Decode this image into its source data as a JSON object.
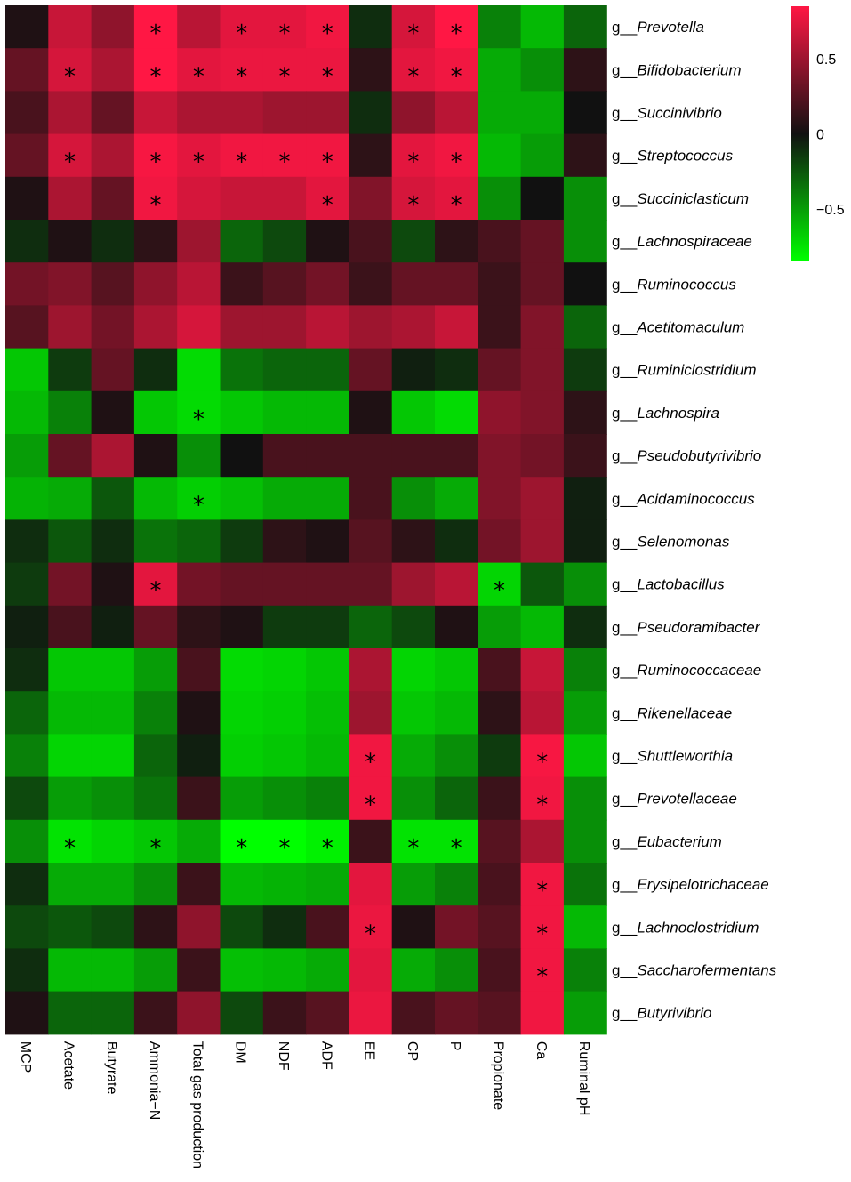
{
  "chart_data": {
    "type": "heatmap",
    "columns": [
      "MCP",
      "Acetate",
      "Butyrate",
      "Ammonia−N",
      "Total gas production",
      "DM",
      "NDF",
      "ADF",
      "EE",
      "CP",
      "P",
      "Propionate",
      "Ca",
      "Ruminal pH"
    ],
    "rows": [
      {
        "prefix": "g__",
        "name": "Prevotella"
      },
      {
        "prefix": "g__",
        "name": "Bifidobacterium"
      },
      {
        "prefix": "g__",
        "name": "Succinivibrio"
      },
      {
        "prefix": "g__",
        "name": "Streptococcus"
      },
      {
        "prefix": "g__",
        "name": "Succiniclasticum"
      },
      {
        "prefix": "g__",
        "name": "Lachnospiraceae"
      },
      {
        "prefix": "g__",
        "name": "Ruminococcus"
      },
      {
        "prefix": "g__",
        "name": "Acetitomaculum"
      },
      {
        "prefix": "g__",
        "name": "Ruminiclostridium"
      },
      {
        "prefix": "g__",
        "name": "Lachnospira"
      },
      {
        "prefix": "g__",
        "name": "Pseudobutyrivibrio"
      },
      {
        "prefix": "g__",
        "name": "Acidaminococcus"
      },
      {
        "prefix": "g__",
        "name": "Selenomonas"
      },
      {
        "prefix": "g__",
        "name": "Lactobacillus"
      },
      {
        "prefix": "g__",
        "name": "Pseudoramibacter"
      },
      {
        "prefix": "g__",
        "name": "Ruminococcaceae"
      },
      {
        "prefix": "g__",
        "name": "Rikenellaceae"
      },
      {
        "prefix": "g__",
        "name": "Shuttleworthia"
      },
      {
        "prefix": "g__",
        "name": "Prevotellaceae"
      },
      {
        "prefix": "g__",
        "name": "Eubacterium"
      },
      {
        "prefix": "g__",
        "name": "Erysipelotrichaceae"
      },
      {
        "prefix": "g__",
        "name": "Lachnoclostridium"
      },
      {
        "prefix": "g__",
        "name": "Saccharofermentans"
      },
      {
        "prefix": "g__",
        "name": "Butyrivibrio"
      }
    ],
    "values": [
      [
        0.05,
        0.65,
        0.45,
        0.85,
        0.6,
        0.75,
        0.75,
        0.8,
        -0.1,
        0.7,
        0.85,
        -0.4,
        -0.6,
        -0.3
      ],
      [
        0.3,
        0.7,
        0.55,
        0.85,
        0.75,
        0.78,
        0.78,
        0.78,
        0.1,
        0.75,
        0.8,
        -0.55,
        -0.45,
        0.1
      ],
      [
        0.2,
        0.55,
        0.3,
        0.65,
        0.55,
        0.55,
        0.5,
        0.5,
        -0.1,
        0.45,
        0.6,
        -0.55,
        -0.55,
        0.0
      ],
      [
        0.3,
        0.7,
        0.55,
        0.82,
        0.75,
        0.8,
        0.8,
        0.8,
        0.1,
        0.75,
        0.8,
        -0.6,
        -0.5,
        0.1
      ],
      [
        0.05,
        0.55,
        0.3,
        0.8,
        0.7,
        0.65,
        0.65,
        0.75,
        0.4,
        0.7,
        0.75,
        -0.45,
        0.0,
        -0.45
      ],
      [
        -0.1,
        0.05,
        -0.1,
        0.1,
        0.5,
        -0.3,
        -0.2,
        0.05,
        0.2,
        -0.2,
        0.1,
        0.2,
        0.3,
        -0.45
      ],
      [
        0.35,
        0.4,
        0.25,
        0.45,
        0.6,
        0.15,
        0.25,
        0.35,
        0.15,
        0.3,
        0.3,
        0.15,
        0.3,
        0.0
      ],
      [
        0.25,
        0.5,
        0.35,
        0.55,
        0.7,
        0.5,
        0.5,
        0.6,
        0.5,
        0.55,
        0.65,
        0.15,
        0.4,
        -0.3
      ],
      [
        -0.65,
        -0.15,
        0.3,
        -0.1,
        -0.72,
        -0.35,
        -0.3,
        -0.3,
        0.3,
        -0.05,
        -0.1,
        0.3,
        0.4,
        -0.15
      ],
      [
        -0.6,
        -0.4,
        0.05,
        -0.65,
        -0.72,
        -0.65,
        -0.6,
        -0.6,
        0.05,
        -0.65,
        -0.72,
        0.45,
        0.4,
        0.1
      ],
      [
        -0.5,
        0.3,
        0.55,
        0.05,
        -0.45,
        0.0,
        0.2,
        0.2,
        0.2,
        0.2,
        0.2,
        0.4,
        0.35,
        0.15
      ],
      [
        -0.58,
        -0.55,
        -0.25,
        -0.6,
        -0.68,
        -0.62,
        -0.55,
        -0.55,
        0.2,
        -0.45,
        -0.55,
        0.4,
        0.5,
        -0.05
      ],
      [
        -0.1,
        -0.25,
        -0.1,
        -0.35,
        -0.3,
        -0.15,
        0.1,
        0.05,
        0.25,
        0.1,
        -0.1,
        0.35,
        0.5,
        -0.05
      ],
      [
        -0.15,
        0.35,
        0.05,
        0.75,
        0.35,
        0.3,
        0.3,
        0.3,
        0.3,
        0.5,
        0.6,
        -0.7,
        -0.25,
        -0.45
      ],
      [
        -0.05,
        0.2,
        -0.05,
        0.3,
        0.1,
        0.05,
        -0.15,
        -0.15,
        -0.3,
        -0.2,
        0.05,
        -0.5,
        -0.6,
        -0.1
      ],
      [
        -0.1,
        -0.65,
        -0.65,
        -0.5,
        0.2,
        -0.72,
        -0.7,
        -0.65,
        0.55,
        -0.7,
        -0.65,
        0.2,
        0.65,
        -0.4
      ],
      [
        -0.3,
        -0.6,
        -0.6,
        -0.4,
        0.05,
        -0.7,
        -0.68,
        -0.62,
        0.5,
        -0.65,
        -0.6,
        0.1,
        0.6,
        -0.5
      ],
      [
        -0.4,
        -0.7,
        -0.7,
        -0.3,
        -0.05,
        -0.68,
        -0.65,
        -0.6,
        0.8,
        -0.55,
        -0.45,
        -0.15,
        0.82,
        -0.65
      ],
      [
        -0.2,
        -0.5,
        -0.45,
        -0.35,
        0.15,
        -0.5,
        -0.45,
        -0.4,
        0.8,
        -0.45,
        -0.3,
        0.15,
        0.8,
        -0.45
      ],
      [
        -0.45,
        -0.75,
        -0.7,
        -0.65,
        -0.55,
        -0.95,
        -0.9,
        -0.8,
        0.15,
        -0.75,
        -0.75,
        0.25,
        0.55,
        -0.45
      ],
      [
        -0.1,
        -0.55,
        -0.55,
        -0.45,
        0.15,
        -0.6,
        -0.58,
        -0.55,
        0.75,
        -0.5,
        -0.4,
        0.2,
        0.8,
        -0.35
      ],
      [
        -0.2,
        -0.25,
        -0.2,
        0.1,
        0.45,
        -0.2,
        -0.1,
        0.2,
        0.78,
        0.05,
        0.35,
        0.25,
        0.8,
        -0.6
      ],
      [
        -0.1,
        -0.6,
        -0.6,
        -0.5,
        0.15,
        -0.62,
        -0.6,
        -0.55,
        0.75,
        -0.55,
        -0.45,
        0.2,
        0.8,
        -0.4
      ],
      [
        0.05,
        -0.3,
        -0.3,
        0.15,
        0.45,
        -0.2,
        0.15,
        0.25,
        0.78,
        0.2,
        0.3,
        0.25,
        0.8,
        -0.5
      ]
    ],
    "significance": [
      [
        false,
        false,
        false,
        true,
        false,
        true,
        true,
        true,
        false,
        true,
        true,
        false,
        false,
        false
      ],
      [
        false,
        true,
        false,
        true,
        true,
        true,
        true,
        true,
        false,
        true,
        true,
        false,
        false,
        false
      ],
      [
        false,
        false,
        false,
        false,
        false,
        false,
        false,
        false,
        false,
        false,
        false,
        false,
        false,
        false
      ],
      [
        false,
        true,
        false,
        true,
        true,
        true,
        true,
        true,
        false,
        true,
        true,
        false,
        false,
        false
      ],
      [
        false,
        false,
        false,
        true,
        false,
        false,
        false,
        true,
        false,
        true,
        true,
        false,
        false,
        false
      ],
      [
        false,
        false,
        false,
        false,
        false,
        false,
        false,
        false,
        false,
        false,
        false,
        false,
        false,
        false
      ],
      [
        false,
        false,
        false,
        false,
        false,
        false,
        false,
        false,
        false,
        false,
        false,
        false,
        false,
        false
      ],
      [
        false,
        false,
        false,
        false,
        false,
        false,
        false,
        false,
        false,
        false,
        false,
        false,
        false,
        false
      ],
      [
        false,
        false,
        false,
        false,
        false,
        false,
        false,
        false,
        false,
        false,
        false,
        false,
        false,
        false
      ],
      [
        false,
        false,
        false,
        false,
        true,
        false,
        false,
        false,
        false,
        false,
        false,
        false,
        false,
        false
      ],
      [
        false,
        false,
        false,
        false,
        false,
        false,
        false,
        false,
        false,
        false,
        false,
        false,
        false,
        false
      ],
      [
        false,
        false,
        false,
        false,
        true,
        false,
        false,
        false,
        false,
        false,
        false,
        false,
        false,
        false
      ],
      [
        false,
        false,
        false,
        false,
        false,
        false,
        false,
        false,
        false,
        false,
        false,
        false,
        false,
        false
      ],
      [
        false,
        false,
        false,
        true,
        false,
        false,
        false,
        false,
        false,
        false,
        false,
        true,
        false,
        false
      ],
      [
        false,
        false,
        false,
        false,
        false,
        false,
        false,
        false,
        false,
        false,
        false,
        false,
        false,
        false
      ],
      [
        false,
        false,
        false,
        false,
        false,
        false,
        false,
        false,
        false,
        false,
        false,
        false,
        false,
        false
      ],
      [
        false,
        false,
        false,
        false,
        false,
        false,
        false,
        false,
        false,
        false,
        false,
        false,
        false,
        false
      ],
      [
        false,
        false,
        false,
        false,
        false,
        false,
        false,
        false,
        true,
        false,
        false,
        false,
        true,
        false
      ],
      [
        false,
        false,
        false,
        false,
        false,
        false,
        false,
        false,
        true,
        false,
        false,
        false,
        true,
        false
      ],
      [
        false,
        true,
        false,
        true,
        false,
        true,
        true,
        true,
        false,
        true,
        true,
        false,
        false,
        false
      ],
      [
        false,
        false,
        false,
        false,
        false,
        false,
        false,
        false,
        false,
        false,
        false,
        false,
        true,
        false
      ],
      [
        false,
        false,
        false,
        false,
        false,
        false,
        false,
        false,
        true,
        false,
        false,
        false,
        true,
        false
      ],
      [
        false,
        false,
        false,
        false,
        false,
        false,
        false,
        false,
        false,
        false,
        false,
        false,
        true,
        false
      ],
      [
        false,
        false,
        false,
        false,
        false,
        false,
        false,
        false,
        false,
        false,
        false,
        false,
        false,
        false
      ]
    ],
    "significance_marker": "*",
    "color_scale": {
      "min": -0.85,
      "max": 0.85,
      "low_color": "#00ff00",
      "mid_color": "#111111",
      "high_color": "#ff1744",
      "ticks": [
        {
          "value": 0.5,
          "label": "0.5"
        },
        {
          "value": 0,
          "label": "0"
        },
        {
          "value": -0.5,
          "label": "−0.5"
        }
      ]
    },
    "legend_position": "top-right"
  }
}
